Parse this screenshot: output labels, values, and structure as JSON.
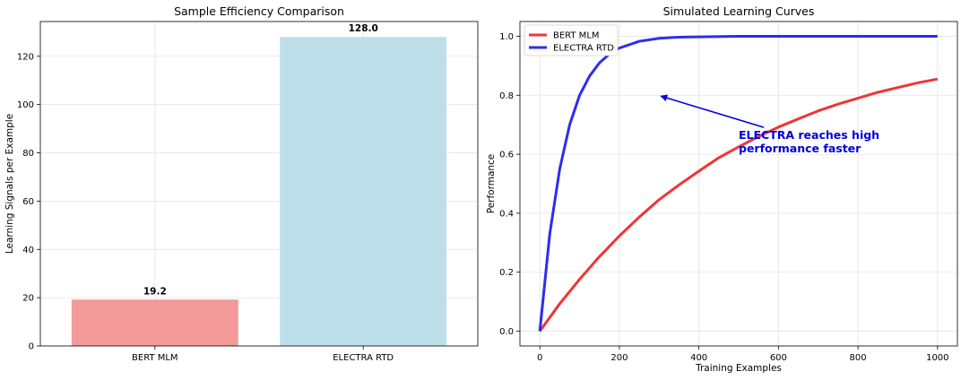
{
  "chart_data": [
    {
      "type": "bar",
      "title": "Sample Efficiency Comparison",
      "xlabel": "",
      "ylabel": "Learning Signals per Example",
      "categories": [
        "BERT MLM",
        "ELECTRA RTD"
      ],
      "values": [
        19.2,
        128.0
      ],
      "value_labels": [
        "19.2",
        "128.0"
      ],
      "colors": [
        "#f4999a",
        "#bddfea"
      ],
      "ylim": [
        0,
        134.4
      ],
      "yticks": [
        0,
        20,
        40,
        60,
        80,
        100,
        120
      ],
      "grid": true
    },
    {
      "type": "line",
      "title": "Simulated Learning Curves",
      "xlabel": "Training Examples",
      "ylabel": "Performance",
      "xlim": [
        -50,
        1050
      ],
      "ylim": [
        -0.05,
        1.05
      ],
      "xticks": [
        0,
        200,
        400,
        600,
        800,
        1000
      ],
      "yticks": [
        0.0,
        0.2,
        0.4,
        0.6,
        0.8,
        1.0
      ],
      "grid": true,
      "legend_position": "top-left",
      "series": [
        {
          "name": "BERT MLM",
          "color": "#f03535",
          "x": [
            0,
            50,
            100,
            150,
            200,
            250,
            300,
            350,
            400,
            450,
            500,
            550,
            600,
            650,
            700,
            750,
            800,
            850,
            900,
            950,
            1000
          ],
          "y": [
            0.0,
            0.093,
            0.176,
            0.253,
            0.323,
            0.387,
            0.446,
            0.496,
            0.543,
            0.588,
            0.625,
            0.66,
            0.692,
            0.72,
            0.747,
            0.77,
            0.79,
            0.81,
            0.826,
            0.842,
            0.855
          ]
        },
        {
          "name": "ELECTRA RTD",
          "color": "#2d2df0",
          "x": [
            0,
            25,
            50,
            75,
            100,
            125,
            150,
            175,
            200,
            250,
            300,
            350,
            400,
            500,
            600,
            700,
            800,
            900,
            1000
          ],
          "y": [
            0.0,
            0.33,
            0.55,
            0.7,
            0.8,
            0.865,
            0.91,
            0.94,
            0.96,
            0.983,
            0.993,
            0.997,
            0.998,
            1.0,
            1.0,
            1.0,
            1.0,
            1.0,
            1.0
          ]
        }
      ],
      "annotation": {
        "text_lines": [
          "ELECTRA reaches high",
          "performance faster"
        ],
        "text_x": 500,
        "text_y": 0.6,
        "arrow_x": 300,
        "arrow_y": 0.8,
        "color": "#0000dd"
      }
    }
  ]
}
